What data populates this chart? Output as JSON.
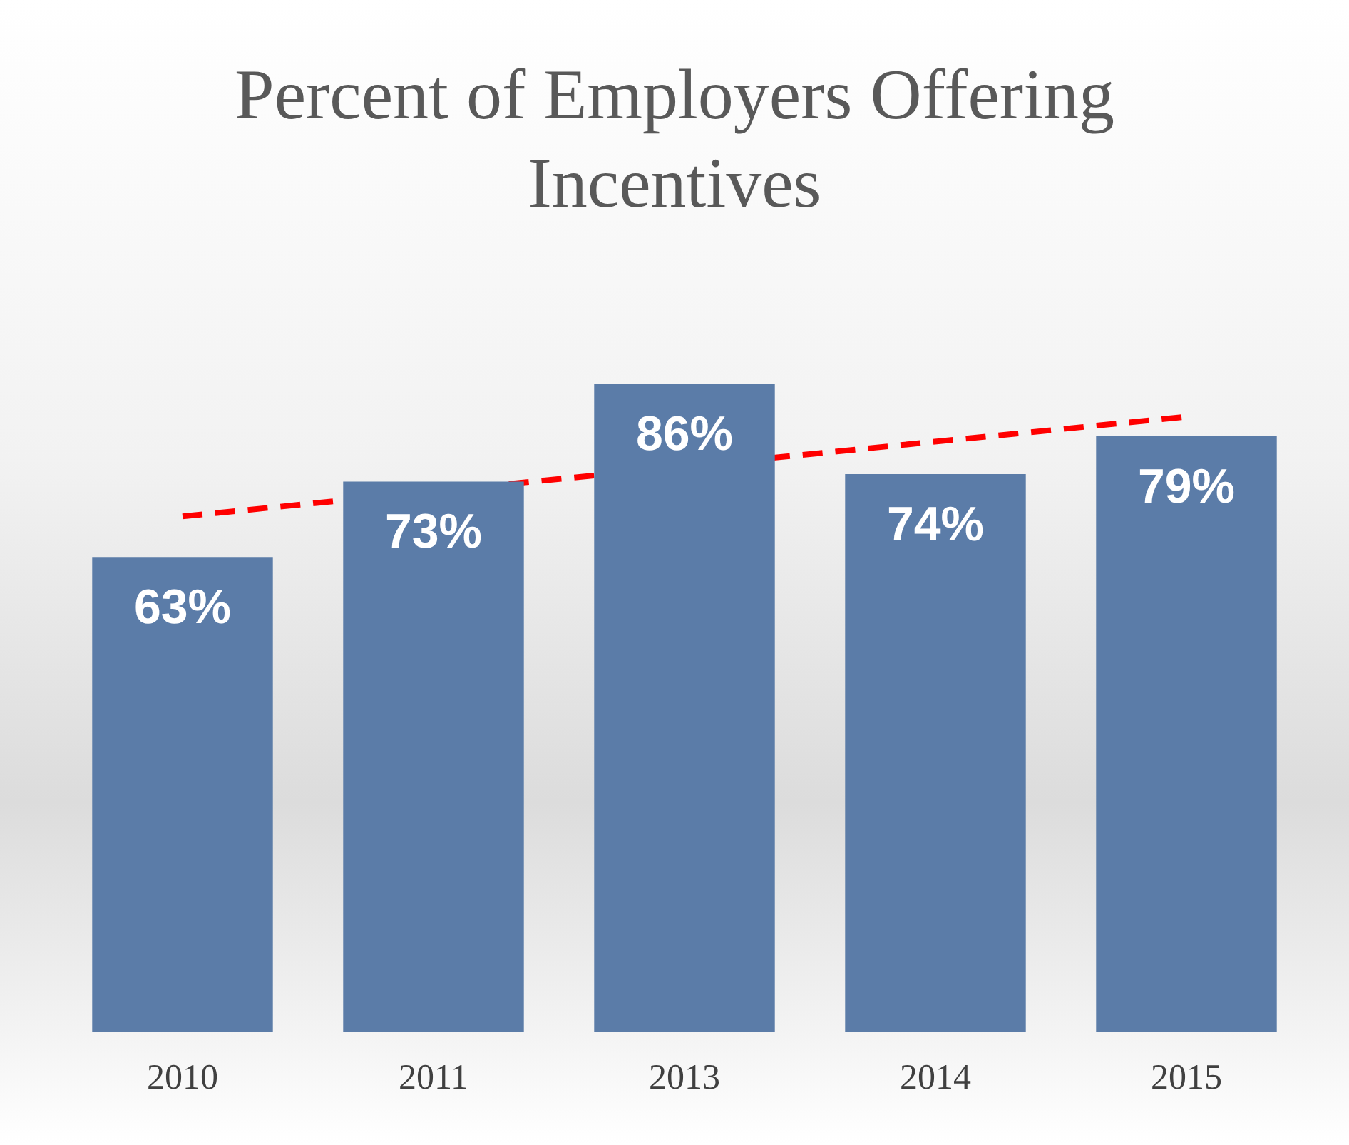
{
  "chart_data": {
    "type": "bar",
    "title": "Percent of Employers Offering Incentives",
    "categories": [
      "2010",
      "2011",
      "2013",
      "2014",
      "2015"
    ],
    "grid": false,
    "legend": false,
    "tick_labels": "x",
    "series": [
      {
        "color": "#5b7ca8",
        "values": [
          63,
          73,
          86,
          74,
          79
        ],
        "value_labels": [
          "63%",
          "73%",
          "86%",
          "74%",
          "79%"
        ]
      },
      {
        "type": "line",
        "values": [
          68.4,
          null,
          null,
          null,
          81.6
        ],
        "color": "#ff0000",
        "line_style": "dashed",
        "marker": "none"
      }
    ]
  }
}
